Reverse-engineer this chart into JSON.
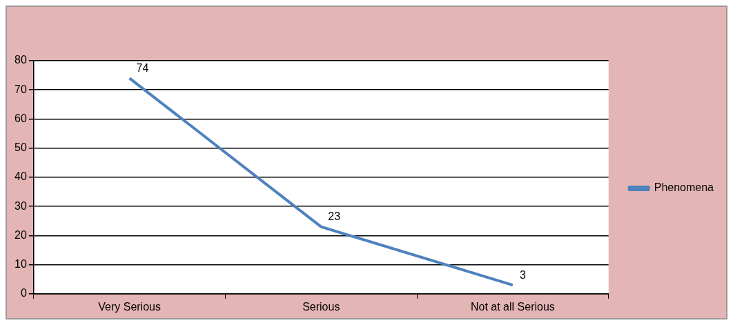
{
  "chart_data": {
    "type": "line",
    "categories": [
      "Very Serious",
      "Serious",
      "Not at all Serious"
    ],
    "series": [
      {
        "name": "Phenomena",
        "color": "#4f81bd",
        "values": [
          74,
          23,
          3
        ]
      }
    ],
    "ylim": [
      0,
      80
    ],
    "yticks": [
      0,
      10,
      20,
      30,
      40,
      50,
      60,
      70,
      80
    ],
    "grid": "y",
    "legend": "right",
    "marker": "none",
    "data_labels": true
  }
}
